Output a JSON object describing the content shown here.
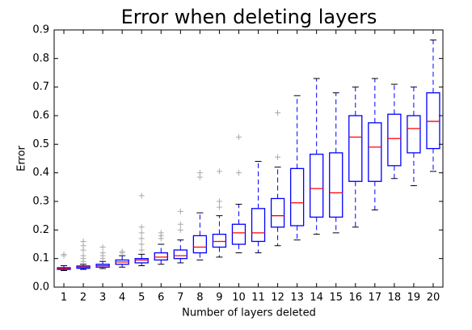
{
  "chart_data": {
    "type": "box",
    "title": "Error when deleting layers",
    "x_label": "Number of layers deleted",
    "y_label": "Error",
    "categories": [
      "1",
      "2",
      "3",
      "4",
      "5",
      "6",
      "7",
      "8",
      "9",
      "10",
      "11",
      "12",
      "13",
      "14",
      "15",
      "16",
      "17",
      "18",
      "19",
      "20"
    ],
    "ylim": [
      0,
      0.9
    ],
    "yticks": [
      {
        "value": 0,
        "label": "0.0"
      },
      0.1,
      0.2,
      0.3,
      0.4,
      0.5,
      0.6,
      0.7,
      0.8,
      0.9
    ],
    "box_color": "#0000ff",
    "median_color": "#ff0000",
    "outlier_color": "#aaaaaa",
    "boxes": [
      {
        "low": 0.058,
        "q1": 0.062,
        "median": 0.065,
        "q3": 0.068,
        "high": 0.075,
        "outliers": [
          0.11,
          0.115
        ]
      },
      {
        "low": 0.062,
        "q1": 0.066,
        "median": 0.07,
        "q3": 0.074,
        "high": 0.08,
        "outliers": [
          0.09,
          0.1,
          0.11,
          0.13,
          0.145,
          0.16
        ]
      },
      {
        "low": 0.065,
        "q1": 0.07,
        "median": 0.075,
        "q3": 0.08,
        "high": 0.09,
        "outliers": [
          0.1,
          0.11,
          0.12,
          0.14
        ]
      },
      {
        "low": 0.07,
        "q1": 0.08,
        "median": 0.088,
        "q3": 0.095,
        "high": 0.11,
        "outliers": [
          0.12,
          0.125
        ]
      },
      {
        "low": 0.075,
        "q1": 0.085,
        "median": 0.095,
        "q3": 0.1,
        "high": 0.115,
        "outliers": [
          0.13,
          0.15,
          0.17,
          0.19,
          0.21,
          0.32
        ]
      },
      {
        "low": 0.08,
        "q1": 0.095,
        "median": 0.105,
        "q3": 0.12,
        "high": 0.15,
        "outliers": [
          0.17,
          0.18,
          0.19
        ]
      },
      {
        "low": 0.085,
        "q1": 0.1,
        "median": 0.11,
        "q3": 0.13,
        "high": 0.165,
        "outliers": [
          0.2,
          0.22,
          0.265
        ]
      },
      {
        "low": 0.095,
        "q1": 0.12,
        "median": 0.14,
        "q3": 0.18,
        "high": 0.26,
        "outliers": [
          0.385,
          0.4
        ]
      },
      {
        "low": 0.105,
        "q1": 0.14,
        "median": 0.16,
        "q3": 0.185,
        "high": 0.25,
        "outliers": [
          0.28,
          0.3,
          0.405
        ]
      },
      {
        "low": 0.12,
        "q1": 0.15,
        "median": 0.19,
        "q3": 0.22,
        "high": 0.29,
        "outliers": [
          0.4,
          0.525
        ]
      },
      {
        "low": 0.12,
        "q1": 0.16,
        "median": 0.19,
        "q3": 0.275,
        "high": 0.44,
        "outliers": []
      },
      {
        "low": 0.145,
        "q1": 0.21,
        "median": 0.25,
        "q3": 0.31,
        "high": 0.42,
        "outliers": [
          0.455,
          0.61
        ]
      },
      {
        "low": 0.165,
        "q1": 0.215,
        "median": 0.295,
        "q3": 0.415,
        "high": 0.67,
        "outliers": []
      },
      {
        "low": 0.185,
        "q1": 0.245,
        "median": 0.345,
        "q3": 0.465,
        "high": 0.73,
        "outliers": []
      },
      {
        "low": 0.19,
        "q1": 0.245,
        "median": 0.33,
        "q3": 0.47,
        "high": 0.68,
        "outliers": []
      },
      {
        "low": 0.21,
        "q1": 0.37,
        "median": 0.525,
        "q3": 0.6,
        "high": 0.7,
        "outliers": []
      },
      {
        "low": 0.27,
        "q1": 0.37,
        "median": 0.49,
        "q3": 0.575,
        "high": 0.73,
        "outliers": []
      },
      {
        "low": 0.38,
        "q1": 0.425,
        "median": 0.52,
        "q3": 0.605,
        "high": 0.71,
        "outliers": []
      },
      {
        "low": 0.355,
        "q1": 0.47,
        "median": 0.555,
        "q3": 0.6,
        "high": 0.7,
        "outliers": []
      },
      {
        "low": 0.405,
        "q1": 0.485,
        "median": 0.58,
        "q3": 0.68,
        "high": 0.865,
        "outliers": []
      }
    ]
  }
}
